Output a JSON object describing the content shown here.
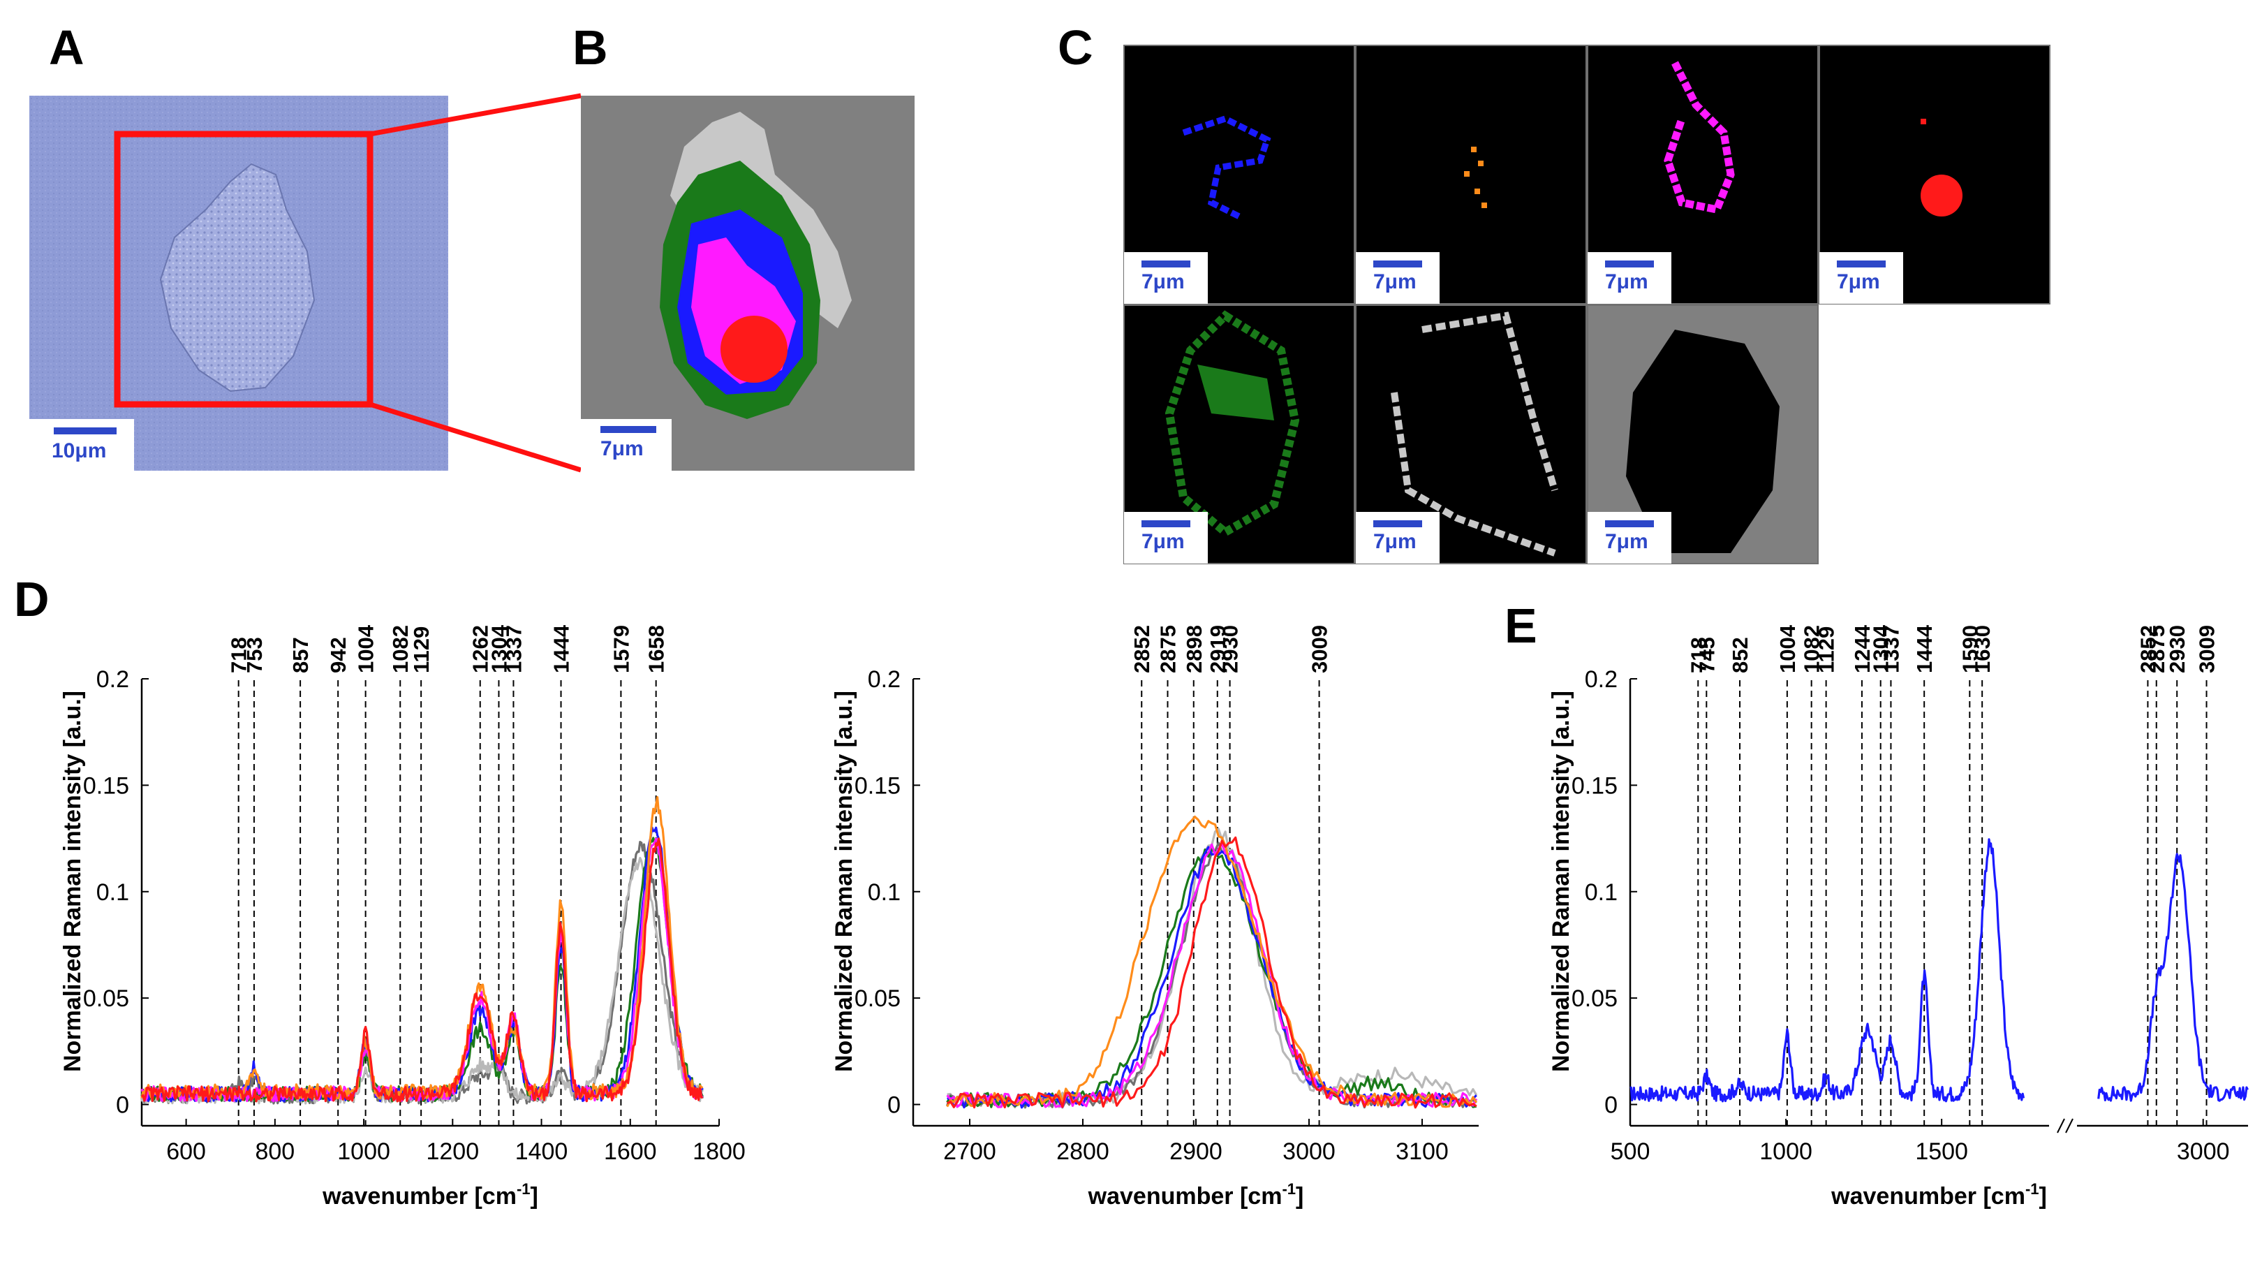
{
  "panel_letters": {
    "a": "A",
    "b": "B",
    "c": "C",
    "d": "D",
    "e": "E"
  },
  "colors": {
    "blue": "#1a1aff",
    "orange": "#ff8c1a",
    "magenta": "#ff1aff",
    "red": "#ff1a1a",
    "green": "#1a7a1a",
    "lightgray": "#c8c8c8",
    "darkgray": "#808080",
    "scalebar": "#2d47c8",
    "microscope": "#8e9bd6"
  },
  "images": {
    "a_scalebar": "10μm",
    "b_scalebar": "7μm",
    "c_scalebars": [
      "7μm",
      "7μm",
      "7μm",
      "7μm",
      "7μm",
      "7μm",
      "7μm"
    ],
    "c_tiles": [
      "blue cluster",
      "orange cluster",
      "magenta cluster",
      "red cluster",
      "green cluster",
      "light gray cluster",
      "dark gray cluster"
    ]
  },
  "chart_data": [
    {
      "id": "D-left",
      "type": "line",
      "xlabel": "wavenumber [cm",
      "xlabel_sup": "-1",
      "xlabel_end": "]",
      "ylabel": "Normalized Raman intensity [a.u.]",
      "xlim": [
        500,
        1800
      ],
      "ylim": [
        -0.01,
        0.2
      ],
      "xticks": [
        600,
        800,
        1000,
        1200,
        1400,
        1600,
        1800
      ],
      "yticks": [
        0,
        0.05,
        0.1,
        0.15,
        0.2
      ],
      "ytick_labels": [
        "0",
        "0.05",
        "0.1",
        "0.15",
        "0.2"
      ],
      "peak_lines": [
        718,
        753,
        857,
        942,
        1004,
        1082,
        1129,
        1262,
        1304,
        1337,
        1444,
        1579,
        1658
      ],
      "peak_labels": [
        "718",
        "753",
        "857",
        "942",
        "1004",
        "1082",
        "1129",
        "1262",
        "1304",
        "1337",
        "1444",
        "1579",
        "1658"
      ],
      "x_range": [
        500,
        1765
      ],
      "series": [
        {
          "name": "dark gray",
          "color": "#707070",
          "base": 0.004,
          "peaks": [
            [
              718,
              0.006,
              10
            ],
            [
              753,
              0.008,
              10
            ],
            [
              1004,
              0.022,
              10
            ],
            [
              1262,
              0.01,
              25
            ],
            [
              1304,
              0.012,
              15
            ],
            [
              1444,
              0.01,
              15
            ],
            [
              1625,
              0.118,
              45
            ]
          ]
        },
        {
          "name": "light gray",
          "color": "#b8b8b8",
          "base": 0.004,
          "peaks": [
            [
              1004,
              0.012,
              10
            ],
            [
              1262,
              0.014,
              25
            ],
            [
              1304,
              0.012,
              15
            ],
            [
              1444,
              0.008,
              15
            ],
            [
              1620,
              0.11,
              45
            ]
          ]
        },
        {
          "name": "green",
          "color": "#1a7a1a",
          "base": 0.005,
          "peaks": [
            [
              1004,
              0.02,
              10
            ],
            [
              1262,
              0.03,
              25
            ],
            [
              1337,
              0.03,
              15
            ],
            [
              1444,
              0.06,
              12
            ],
            [
              1650,
              0.12,
              35
            ]
          ]
        },
        {
          "name": "blue",
          "color": "#1a1aff",
          "base": 0.005,
          "peaks": [
            [
              753,
              0.012,
              10
            ],
            [
              1004,
              0.025,
              10
            ],
            [
              1262,
              0.04,
              25
            ],
            [
              1337,
              0.032,
              15
            ],
            [
              1444,
              0.07,
              12
            ],
            [
              1655,
              0.125,
              32
            ]
          ]
        },
        {
          "name": "magenta",
          "color": "#ff1aff",
          "base": 0.005,
          "peaks": [
            [
              1004,
              0.022,
              10
            ],
            [
              1262,
              0.045,
              25
            ],
            [
              1337,
              0.035,
              15
            ],
            [
              1444,
              0.075,
              12
            ],
            [
              1655,
              0.12,
              30
            ]
          ]
        },
        {
          "name": "orange",
          "color": "#ff8c1a",
          "base": 0.006,
          "peaks": [
            [
              753,
              0.01,
              10
            ],
            [
              1004,
              0.024,
              10
            ],
            [
              1262,
              0.05,
              25
            ],
            [
              1337,
              0.03,
              15
            ],
            [
              1444,
              0.088,
              12
            ],
            [
              1660,
              0.135,
              28
            ]
          ]
        },
        {
          "name": "red",
          "color": "#ff1a1a",
          "base": 0.005,
          "peaks": [
            [
              1004,
              0.028,
              10
            ],
            [
              1262,
              0.048,
              25
            ],
            [
              1337,
              0.036,
              15
            ],
            [
              1444,
              0.08,
              12
            ],
            [
              1660,
              0.118,
              28
            ]
          ]
        }
      ]
    },
    {
      "id": "D-right",
      "type": "line",
      "xlabel": "wavenumber [cm",
      "xlabel_sup": "-1",
      "xlabel_end": "]",
      "ylabel": "Normalized Raman intensity [a.u.]",
      "xlim": [
        2650,
        3150
      ],
      "ylim": [
        -0.01,
        0.2
      ],
      "xticks": [
        2700,
        2800,
        2900,
        3000,
        3100
      ],
      "yticks": [
        0,
        0.05,
        0.1,
        0.15,
        0.2
      ],
      "ytick_labels": [
        "0",
        "0.05",
        "0.1",
        "0.15",
        "0.2"
      ],
      "peak_lines": [
        2852,
        2875,
        2898,
        2919,
        2930,
        3009
      ],
      "peak_labels": [
        "2852",
        "2875",
        "2898",
        "2919",
        "2930",
        "3009"
      ],
      "x_range": [
        2680,
        3150
      ],
      "series": [
        {
          "name": "light gray",
          "color": "#b8b8b8",
          "base": 0.002,
          "peaks": [
            [
              2920,
              0.125,
              32
            ],
            [
              3070,
              0.012,
              40
            ]
          ]
        },
        {
          "name": "dark gray",
          "color": "#707070",
          "base": 0.002,
          "peaks": [
            [
              2922,
              0.118,
              35
            ]
          ]
        },
        {
          "name": "green",
          "color": "#1a7a1a",
          "base": 0.002,
          "peaks": [
            [
              2915,
              0.118,
              40
            ],
            [
              3060,
              0.008,
              20
            ]
          ]
        },
        {
          "name": "blue",
          "color": "#1a1aff",
          "base": 0.002,
          "peaks": [
            [
              2918,
              0.118,
              38
            ]
          ]
        },
        {
          "name": "magenta",
          "color": "#ff1aff",
          "base": 0.002,
          "peaks": [
            [
              2922,
              0.12,
              36
            ]
          ]
        },
        {
          "name": "orange",
          "color": "#ff8c1a",
          "base": 0.002,
          "peaks": [
            [
              2875,
              0.07,
              35
            ],
            [
              2925,
              0.095,
              40
            ]
          ]
        },
        {
          "name": "red",
          "color": "#ff1a1a",
          "base": 0.002,
          "peaks": [
            [
              2930,
              0.123,
              32
            ]
          ]
        }
      ]
    },
    {
      "id": "E",
      "type": "line",
      "xlabel": "wavenumber [cm",
      "xlabel_sup": "-1",
      "xlabel_end": "]",
      "ylabel": "Normalized Raman intensity [a.u.]",
      "xlim": [
        500,
        3100
      ],
      "ylim": [
        -0.01,
        0.2
      ],
      "xticks": [
        500,
        1000,
        1500,
        3000
      ],
      "yticks": [
        0,
        0.05,
        0.1,
        0.15,
        0.2
      ],
      "ytick_labels": [
        "0",
        "0.05",
        "0.1",
        "0.15",
        "0.2"
      ],
      "peak_lines": [
        718,
        745,
        852,
        1004,
        1082,
        1129,
        1244,
        1304,
        1337,
        1444,
        1590,
        1630,
        2852,
        2875,
        2930,
        3009
      ],
      "peak_labels": [
        "718",
        "745",
        "852",
        "1004",
        "1082",
        "1129",
        "1244",
        "1304",
        "1337",
        "1444",
        "1590",
        "1630",
        "2852",
        "2875",
        "2930",
        "3009"
      ],
      "segments": [
        [
          500,
          1765
        ],
        [
          2720,
          3120
        ]
      ],
      "series": [
        {
          "name": "blue",
          "color": "#1a1aff",
          "base": 0.005,
          "peaks": [
            [
              745,
              0.008,
              10
            ],
            [
              852,
              0.004,
              15
            ],
            [
              1004,
              0.028,
              10
            ],
            [
              1129,
              0.008,
              10
            ],
            [
              1262,
              0.03,
              25
            ],
            [
              1337,
              0.025,
              15
            ],
            [
              1444,
              0.055,
              12
            ],
            [
              1655,
              0.117,
              30
            ],
            [
              2875,
              0.04,
              18
            ],
            [
              2935,
              0.112,
              28
            ]
          ]
        }
      ]
    }
  ]
}
